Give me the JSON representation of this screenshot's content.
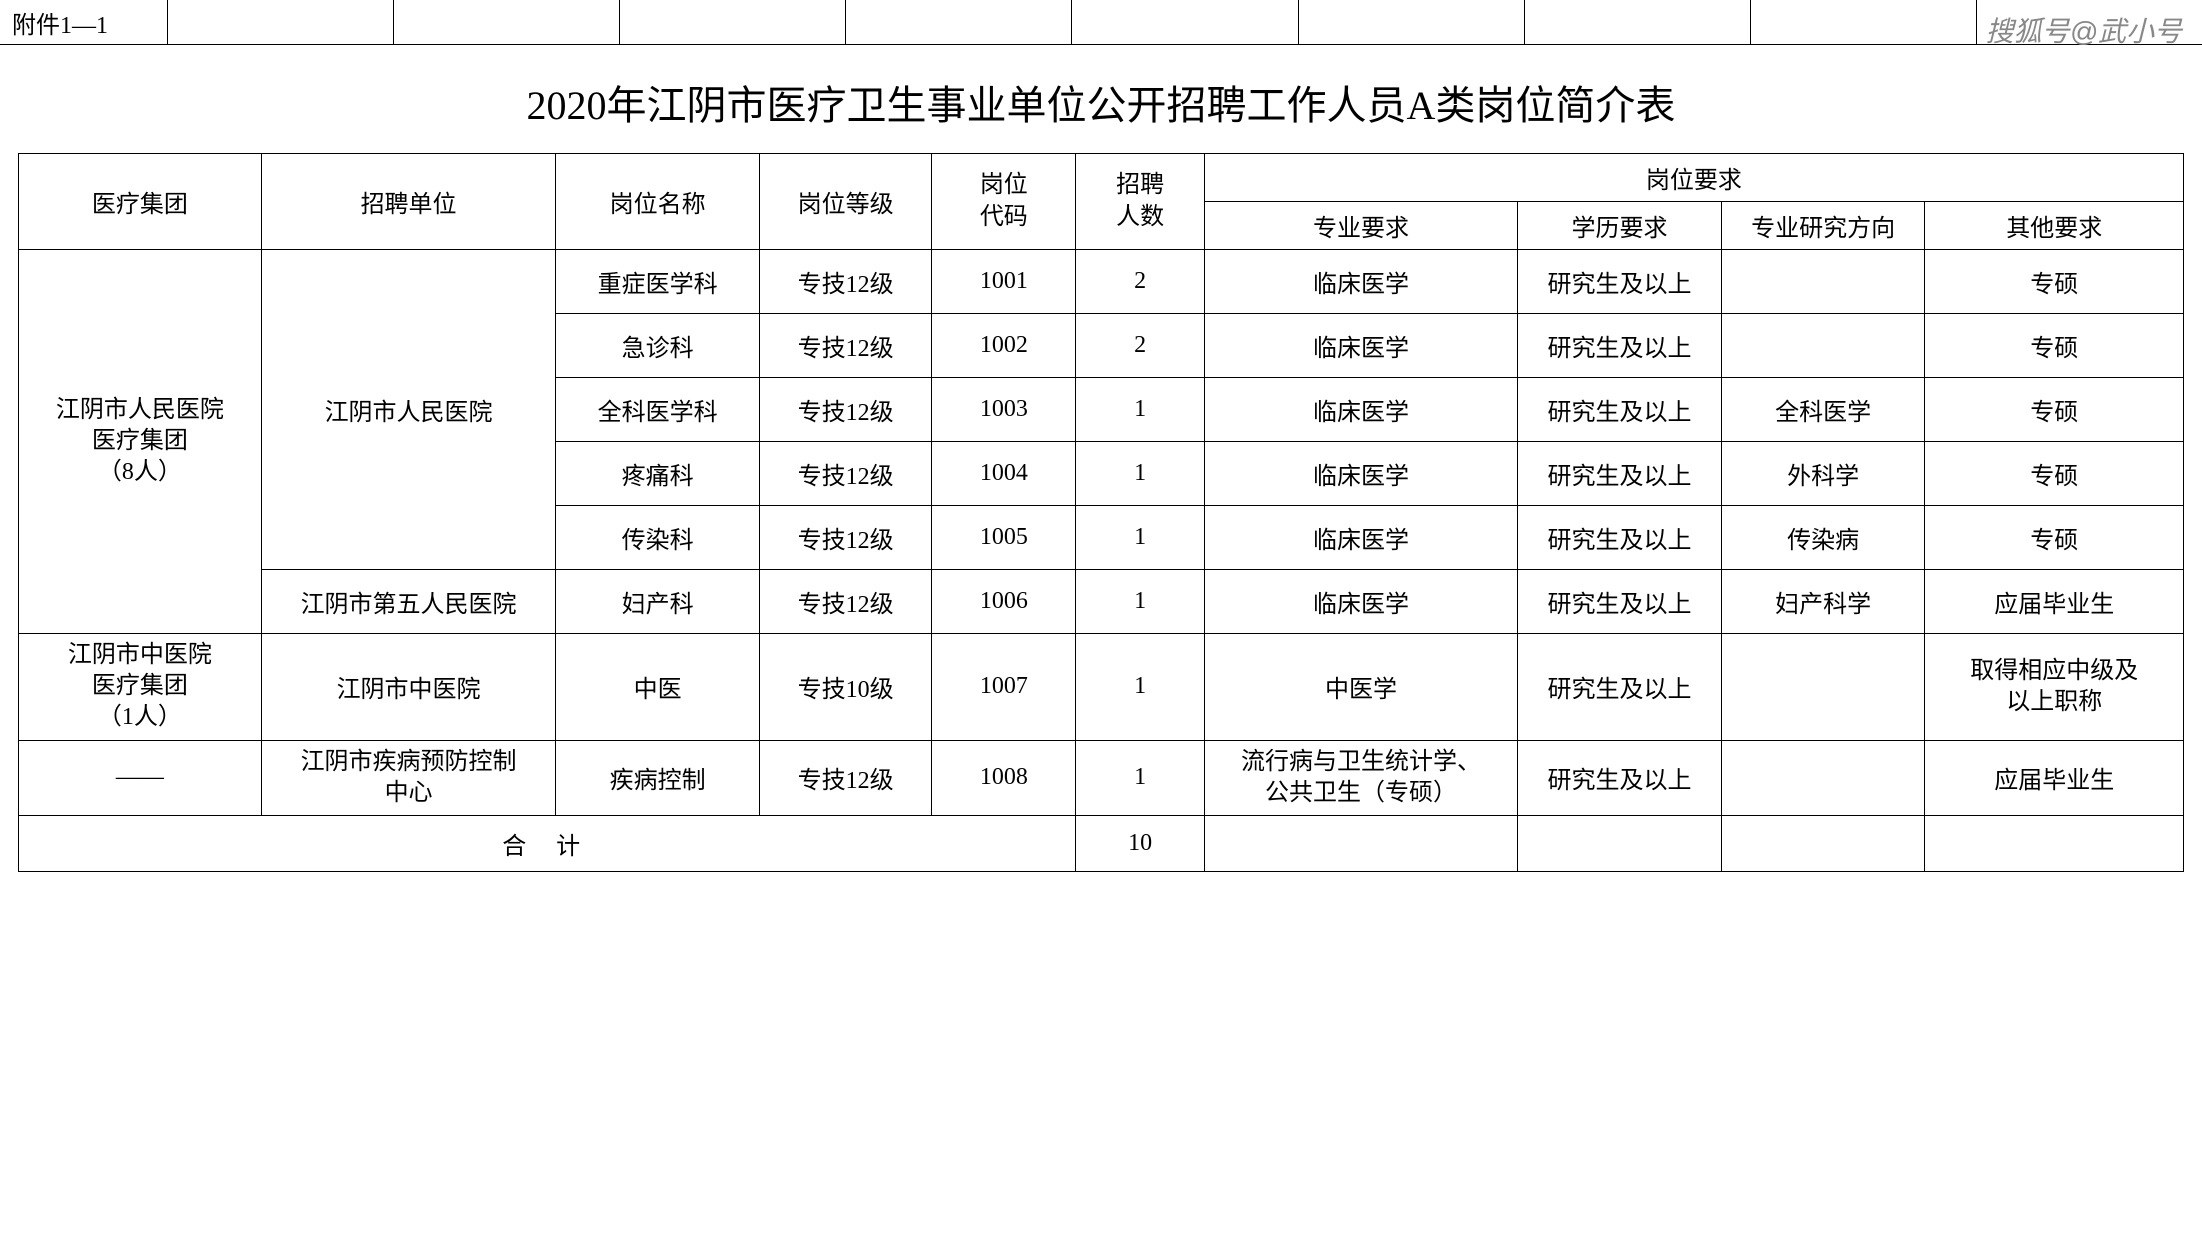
{
  "watermark": "搜狐号@武小号",
  "attachment_label": "附件1—1",
  "title": "2020年江阴市医疗卫生事业单位公开招聘工作人员A类岗位简介表",
  "headers": {
    "group": "医疗集团",
    "unit": "招聘单位",
    "position_name": "岗位名称",
    "position_grade": "岗位等级",
    "position_code": "岗位\n代码",
    "recruit_count": "招聘\n人数",
    "requirements": "岗位要求",
    "major": "专业要求",
    "education": "学历要求",
    "research": "专业研究方向",
    "other": "其他要求"
  },
  "rows": [
    {
      "group": "江阴市人民医院\n医疗集团\n（8人）",
      "unit": "江阴市人民医院",
      "posname": "重症医学科",
      "posgrade": "专技12级",
      "poscode": "1001",
      "count": "2",
      "major": "临床医学",
      "edu": "研究生及以上",
      "research": "",
      "other": "专硕"
    },
    {
      "group": "",
      "unit": "",
      "posname": "急诊科",
      "posgrade": "专技12级",
      "poscode": "1002",
      "count": "2",
      "major": "临床医学",
      "edu": "研究生及以上",
      "research": "",
      "other": "专硕"
    },
    {
      "group": "",
      "unit": "",
      "posname": "全科医学科",
      "posgrade": "专技12级",
      "poscode": "1003",
      "count": "1",
      "major": "临床医学",
      "edu": "研究生及以上",
      "research": "全科医学",
      "other": "专硕"
    },
    {
      "group": "",
      "unit": "",
      "posname": "疼痛科",
      "posgrade": "专技12级",
      "poscode": "1004",
      "count": "1",
      "major": "临床医学",
      "edu": "研究生及以上",
      "research": "外科学",
      "other": "专硕"
    },
    {
      "group": "",
      "unit": "",
      "posname": "传染科",
      "posgrade": "专技12级",
      "poscode": "1005",
      "count": "1",
      "major": "临床医学",
      "edu": "研究生及以上",
      "research": "传染病",
      "other": "专硕"
    },
    {
      "group": "",
      "unit": "江阴市第五人民医院",
      "posname": "妇产科",
      "posgrade": "专技12级",
      "poscode": "1006",
      "count": "1",
      "major": "临床医学",
      "edu": "研究生及以上",
      "research": "妇产科学",
      "other": "应届毕业生"
    },
    {
      "group": "江阴市中医院\n医疗集团\n（1人）",
      "unit": "江阴市中医院",
      "posname": "中医",
      "posgrade": "专技10级",
      "poscode": "1007",
      "count": "1",
      "major": "中医学",
      "edu": "研究生及以上",
      "research": "",
      "other": "取得相应中级及\n以上职称"
    },
    {
      "group": "——",
      "unit": "江阴市疾病预防控制\n中心",
      "posname": "疾病控制",
      "posgrade": "专技12级",
      "poscode": "1008",
      "count": "1",
      "major": "流行病与卫生统计学、\n公共卫生（专硕）",
      "edu": "研究生及以上",
      "research": "",
      "other": "应届毕业生"
    }
  ],
  "total_label": "合  计",
  "total_count": "10",
  "style": {
    "border_color": "#000000",
    "background": "#ffffff",
    "text_color": "#000000",
    "title_fontsize": 40,
    "cell_fontsize": 24,
    "watermark_color": "#888888"
  }
}
